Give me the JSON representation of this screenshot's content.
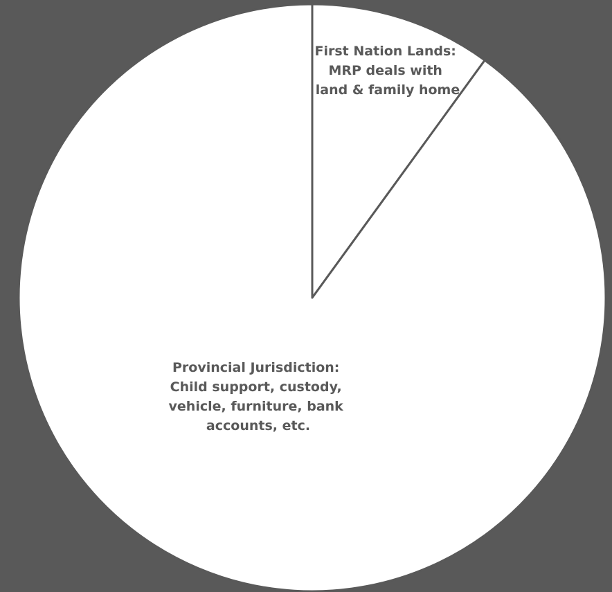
{
  "chart_data": {
    "type": "pie",
    "title": "",
    "start_angle_deg": 0,
    "direction": "clockwise",
    "colors": {
      "background": "#595959",
      "slice_fill": "#ffffff",
      "slice_stroke": "#595959",
      "label_text": "#595959"
    },
    "slices": [
      {
        "name": "First Nation Lands",
        "percent": 10,
        "label_lines": [
          "First Nation Lands:",
          "MRP deals with",
          "land & family home"
        ]
      },
      {
        "name": "Provincial Jurisdiction",
        "percent": 90,
        "label_lines": [
          "Provincial Jurisdiction:",
          "Child support, custody,",
          "vehicle, furniture, bank",
          "accounts, etc."
        ]
      }
    ]
  }
}
